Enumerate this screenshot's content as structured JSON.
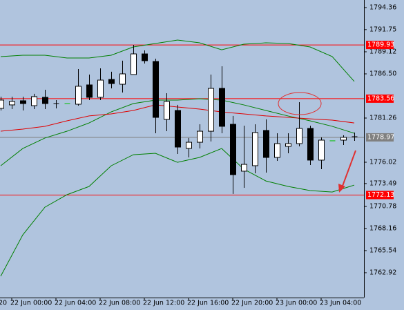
{
  "chart_data": {
    "type": "candlestick",
    "background": "#b0c4de",
    "bull_color": "#ffffff",
    "bear_color": "#000000",
    "flat_color": "#00c000",
    "categories": [
      null,
      "22 Jun 00:00",
      null,
      null,
      null,
      "22 Jun 04:00",
      null,
      null,
      null,
      "22 Jun 08:00",
      null,
      null,
      null,
      "22 Jun 12:00",
      null,
      null,
      null,
      "22 Jun 16:00",
      null,
      null,
      null,
      "22 Jun 20:00",
      null,
      null,
      null,
      "23 Jun 00:00",
      null,
      null,
      null,
      "23 Jun 04:00",
      null,
      null,
      null
    ],
    "clipped_x_label": "20",
    "open": [
      1782.41,
      1782.82,
      1783.31,
      1782.73,
      1783.72,
      1782.98,
      1782.98,
      1782.9,
      1785.19,
      1783.72,
      1785.84,
      1785.27,
      1786.42,
      1788.87,
      1787.97,
      1781.1,
      1782.16,
      1777.66,
      1778.39,
      1779.7,
      1784.78,
      1780.52,
      1774.96,
      1775.61,
      1779.79,
      1776.59,
      1777.9,
      1778.23,
      1780.03,
      1776.27,
      1778.56,
      1778.64,
      1779.05
    ],
    "high": [
      1783.8,
      1783.8,
      1783.8,
      1784.13,
      1784.62,
      1783.39,
      1782.98,
      1787.07,
      1786.42,
      1787.15,
      1786.75,
      1788.06,
      1789.94,
      1789.28,
      1788.3,
      1784.21,
      1782.82,
      1778.89,
      1780.52,
      1786.42,
      1787.4,
      1781.51,
      1780.36,
      1780.52,
      1781.1,
      1779.46,
      1779.46,
      1783.14,
      1780.36,
      1778.97,
      1778.56,
      1779.21,
      1779.54
    ],
    "low": [
      1782.16,
      1782.32,
      1782.16,
      1782.32,
      1782.32,
      1782.41,
      1782.98,
      1782.73,
      1783.39,
      1783.39,
      1784.78,
      1784.29,
      1786.42,
      1787.73,
      1779.46,
      1779.7,
      1777.0,
      1776.59,
      1777.66,
      1778.48,
      1779.46,
      1772.26,
      1772.99,
      1774.71,
      1774.79,
      1776.18,
      1777.08,
      1777.9,
      1775.69,
      1775.2,
      1778.56,
      1778.07,
      1778.56
    ],
    "close": [
      1783.39,
      1783.23,
      1782.98,
      1783.8,
      1782.98,
      1782.98,
      1782.98,
      1785.03,
      1783.72,
      1785.76,
      1785.35,
      1786.5,
      1788.87,
      1788.06,
      1781.34,
      1783.23,
      1777.82,
      1778.39,
      1779.7,
      1784.78,
      1780.28,
      1774.55,
      1775.77,
      1779.54,
      1776.59,
      1778.23,
      1778.23,
      1780.03,
      1776.27,
      1778.64,
      1778.56,
      1778.97,
      1779.05
    ],
    "series": [
      {
        "color": "#008000",
        "x": [
          0,
          2,
          4,
          6,
          8,
          10,
          12,
          14,
          16,
          18,
          20,
          22,
          24,
          26,
          28,
          30,
          32
        ],
        "values": [
          1788.55,
          1788.71,
          1788.71,
          1788.38,
          1788.38,
          1788.71,
          1789.69,
          1790.1,
          1790.51,
          1790.18,
          1789.36,
          1790.02,
          1790.18,
          1790.1,
          1789.69,
          1788.55,
          1785.6
        ]
      },
      {
        "color": "#008000",
        "x": [
          0,
          2,
          4,
          6,
          8,
          10,
          12,
          14,
          16,
          18,
          20,
          22,
          24,
          26,
          28,
          30,
          32
        ],
        "values": [
          1775.6,
          1777.65,
          1778.89,
          1779.7,
          1780.68,
          1781.99,
          1782.98,
          1783.39,
          1783.39,
          1783.55,
          1783.39,
          1782.82,
          1782.16,
          1781.51,
          1780.93,
          1780.28,
          1779.46
        ]
      },
      {
        "color": "#008000",
        "x": [
          0,
          2,
          4,
          6,
          8,
          10,
          12,
          14,
          16,
          18,
          20,
          22,
          24,
          26,
          28,
          30,
          32
        ],
        "values": [
          1762.5,
          1767.41,
          1770.69,
          1772.17,
          1773.15,
          1775.6,
          1776.91,
          1777.08,
          1776.01,
          1776.59,
          1777.65,
          1775.2,
          1773.8,
          1773.15,
          1772.66,
          1772.49,
          1773.31
        ]
      },
      {
        "color": "#e00000",
        "x": [
          0,
          2,
          4,
          6,
          8,
          10,
          12,
          14,
          16,
          18,
          20,
          22,
          24,
          26,
          28,
          30,
          32
        ],
        "values": [
          1779.7,
          1779.95,
          1780.28,
          1780.93,
          1781.51,
          1781.75,
          1782.16,
          1782.82,
          1782.57,
          1782.32,
          1781.99,
          1781.75,
          1781.51,
          1781.34,
          1781.17,
          1781.01,
          1780.68
        ]
      }
    ],
    "levels": [
      {
        "value": 1789.93,
        "color": "#ff0000"
      },
      {
        "value": 1783.56,
        "color": "#ff0000"
      },
      {
        "value": 1772.13,
        "color": "#ff0000"
      },
      {
        "value": 1778.97,
        "color": "#808080"
      }
    ],
    "ylim": [
      1759.97,
      1795.26
    ],
    "yticks": [
      1794.36,
      1791.75,
      1789.12,
      {
        "value": 1786.5,
        "label": "1786.50"
      },
      1781.26,
      1776.02,
      1773.49,
      1770.78,
      1768.16,
      1765.54,
      1762.92
    ]
  }
}
